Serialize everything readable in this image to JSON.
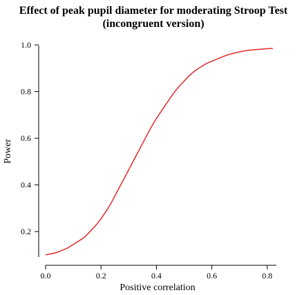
{
  "chart_data": {
    "type": "line",
    "title_lines": [
      "Effect of peak pupil diameter for moderating Stroop Test",
      "(incongruent version)"
    ],
    "xlabel": "Positive correlation",
    "ylabel": "Power",
    "xlim": [
      0.0,
      0.82
    ],
    "ylim": [
      0.1,
      1.0
    ],
    "x_ticks": [
      0.0,
      0.2,
      0.4,
      0.6,
      0.8
    ],
    "x_tick_labels": [
      "0.0",
      "0.2",
      "0.4",
      "0.6",
      "0.8"
    ],
    "y_ticks": [
      0.2,
      0.4,
      0.6,
      0.8,
      1.0
    ],
    "y_tick_labels": [
      "0.2",
      "0.4",
      "0.6",
      "0.8",
      "1.0"
    ],
    "grid": false,
    "colors": {
      "series": "#e31a1c",
      "axis": "#000000"
    },
    "series": [
      {
        "x": [
          0.0,
          0.02,
          0.04,
          0.06,
          0.08,
          0.1,
          0.12,
          0.14,
          0.16,
          0.18,
          0.2,
          0.22,
          0.24,
          0.26,
          0.28,
          0.3,
          0.32,
          0.34,
          0.36,
          0.38,
          0.4,
          0.42,
          0.44,
          0.46,
          0.48,
          0.5,
          0.52,
          0.54,
          0.56,
          0.58,
          0.6,
          0.62,
          0.64,
          0.66,
          0.68,
          0.7,
          0.72,
          0.74,
          0.76,
          0.78,
          0.8,
          0.82
        ],
        "y": [
          0.1,
          0.105,
          0.11,
          0.12,
          0.13,
          0.145,
          0.16,
          0.175,
          0.2,
          0.225,
          0.255,
          0.29,
          0.33,
          0.375,
          0.42,
          0.465,
          0.51,
          0.555,
          0.6,
          0.645,
          0.685,
          0.72,
          0.755,
          0.79,
          0.82,
          0.845,
          0.87,
          0.89,
          0.905,
          0.92,
          0.93,
          0.94,
          0.95,
          0.958,
          0.965,
          0.97,
          0.975,
          0.978,
          0.98,
          0.982,
          0.984,
          0.985
        ]
      }
    ]
  }
}
